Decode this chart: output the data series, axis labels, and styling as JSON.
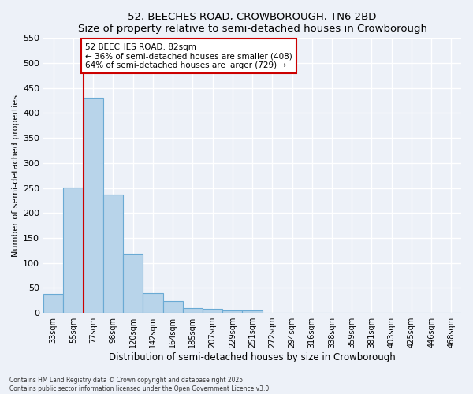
{
  "title": "52, BEECHES ROAD, CROWBOROUGH, TN6 2BD",
  "subtitle": "Size of property relative to semi-detached houses in Crowborough",
  "xlabel": "Distribution of semi-detached houses by size in Crowborough",
  "ylabel": "Number of semi-detached properties",
  "categories": [
    "33sqm",
    "55sqm",
    "77sqm",
    "98sqm",
    "120sqm",
    "142sqm",
    "164sqm",
    "185sqm",
    "207sqm",
    "229sqm",
    "251sqm",
    "272sqm",
    "294sqm",
    "316sqm",
    "338sqm",
    "359sqm",
    "381sqm",
    "403sqm",
    "425sqm",
    "446sqm",
    "468sqm"
  ],
  "values": [
    38,
    251,
    430,
    237,
    119,
    40,
    23,
    10,
    8,
    5,
    5,
    0,
    0,
    0,
    0,
    0,
    0,
    0,
    0,
    0,
    0
  ],
  "bar_color": "#b8d4ea",
  "bar_edge_color": "#6aaad4",
  "red_line_index": 2,
  "red_line_color": "#cc0000",
  "annotation_title": "52 BEECHES ROAD: 82sqm",
  "annotation_line1": "← 36% of semi-detached houses are smaller (408)",
  "annotation_line2": "64% of semi-detached houses are larger (729) →",
  "annotation_box_color": "#ffffff",
  "annotation_box_edge": "#cc0000",
  "ylim": [
    0,
    550
  ],
  "yticks": [
    0,
    50,
    100,
    150,
    200,
    250,
    300,
    350,
    400,
    450,
    500,
    550
  ],
  "background_color": "#edf1f8",
  "grid_color": "#ffffff",
  "footer_line1": "Contains HM Land Registry data © Crown copyright and database right 2025.",
  "footer_line2": "Contains public sector information licensed under the Open Government Licence v3.0."
}
